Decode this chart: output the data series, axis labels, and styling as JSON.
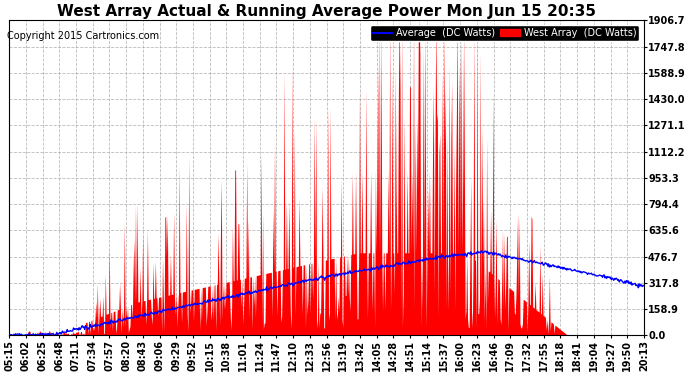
{
  "title": "West Array Actual & Running Average Power Mon Jun 15 20:35",
  "copyright": "Copyright 2015 Cartronics.com",
  "legend_labels": [
    "Average  (DC Watts)",
    "West Array  (DC Watts)"
  ],
  "yticks": [
    0.0,
    158.9,
    317.8,
    476.7,
    635.6,
    794.4,
    953.3,
    1112.2,
    1271.1,
    1430.0,
    1588.9,
    1747.8,
    1906.7
  ],
  "ymax": 1906.7,
  "ymin": 0.0,
  "xtick_labels": [
    "05:15",
    "06:02",
    "06:25",
    "06:48",
    "07:11",
    "07:34",
    "07:57",
    "08:20",
    "08:43",
    "09:06",
    "09:29",
    "09:52",
    "10:15",
    "10:38",
    "11:01",
    "11:24",
    "11:47",
    "12:10",
    "12:33",
    "12:56",
    "13:19",
    "13:42",
    "14:05",
    "14:28",
    "14:51",
    "15:14",
    "15:37",
    "16:00",
    "16:23",
    "16:46",
    "17:09",
    "17:32",
    "17:55",
    "18:18",
    "18:41",
    "19:04",
    "19:27",
    "19:50",
    "20:13"
  ],
  "plot_bg": "#ffffff",
  "fig_bg": "#ffffff",
  "grid_color": "#aaaaaa",
  "spine_color": "#000000",
  "title_fontsize": 11,
  "tick_fontsize": 7,
  "copyright_fontsize": 7
}
